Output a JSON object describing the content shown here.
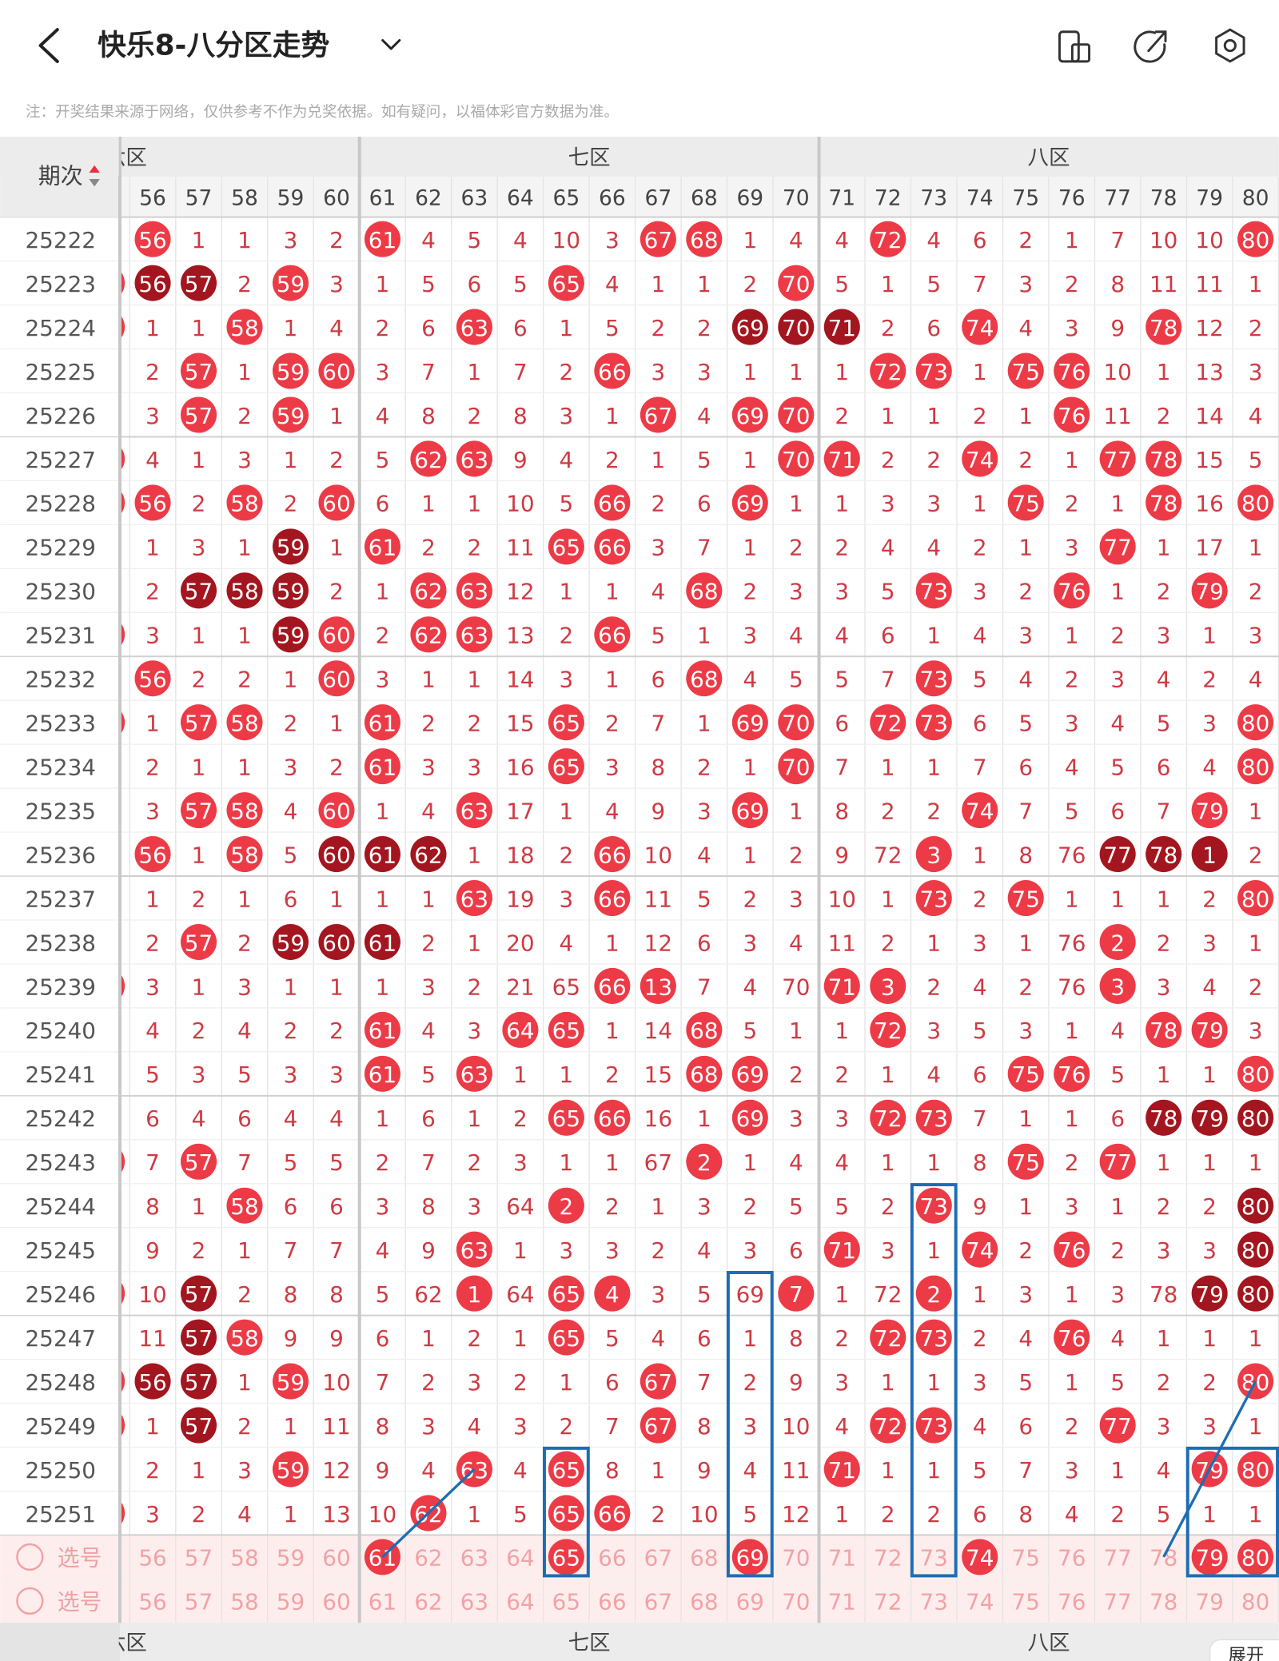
{
  "header": {
    "title": "快乐8-八分区走势",
    "notice": "注：开奖结果来源于网络，仅供参考不作为兑奖依据。如有疑问，以福体彩官方数据为准。"
  },
  "table": {
    "period_header": "期次",
    "zones": [
      "六区",
      "七区",
      "八区"
    ],
    "columns": [
      56,
      57,
      58,
      59,
      60,
      61,
      62,
      63,
      64,
      65,
      66,
      67,
      68,
      69,
      70,
      71,
      72,
      73,
      74,
      75,
      76,
      77,
      78,
      79,
      80
    ],
    "ball_colors": {
      "r": "#ec3b47",
      "d": "#a3161f"
    },
    "rows": [
      {
        "period": "25222",
        "cells": [
          56,
          1,
          1,
          3,
          2,
          61,
          4,
          5,
          4,
          10,
          3,
          67,
          68,
          1,
          4,
          4,
          72,
          4,
          6,
          2,
          1,
          7,
          10,
          10,
          80
        ],
        "balls": ".r....r.....rr...r.......r"
      },
      {
        "period": "25223",
        "cells": [
          56,
          57,
          2,
          59,
          3,
          1,
          5,
          6,
          5,
          65,
          4,
          1,
          1,
          2,
          70,
          5,
          1,
          5,
          7,
          3,
          2,
          8,
          11,
          11,
          1
        ],
        "balls": "rdd.r.....r....r.........."
      },
      {
        "period": "25224",
        "cells": [
          1,
          1,
          58,
          1,
          4,
          2,
          6,
          63,
          6,
          1,
          5,
          2,
          2,
          69,
          70,
          71,
          2,
          6,
          74,
          4,
          3,
          9,
          78,
          12,
          2
        ],
        "balls": "r..r....r.....ddd..r...r.."
      },
      {
        "period": "25225",
        "cells": [
          2,
          57,
          1,
          59,
          60,
          3,
          7,
          1,
          7,
          2,
          66,
          3,
          3,
          1,
          1,
          1,
          72,
          73,
          1,
          75,
          76,
          10,
          1,
          13,
          3
        ],
        "balls": "..r.rr.....r.....rr.rr...."
      },
      {
        "period": "25226",
        "cells": [
          3,
          57,
          2,
          59,
          1,
          4,
          8,
          2,
          8,
          3,
          1,
          67,
          4,
          69,
          70,
          2,
          1,
          1,
          2,
          1,
          76,
          11,
          2,
          14,
          4
        ],
        "balls": "..r.r.......r.rr.....r...."
      },
      {
        "period": "25227",
        "cells": [
          4,
          1,
          3,
          1,
          2,
          5,
          62,
          63,
          9,
          4,
          2,
          1,
          5,
          1,
          70,
          71,
          2,
          2,
          74,
          2,
          1,
          77,
          78,
          15,
          5
        ],
        "balls": "r......rr......rr..r..rr.."
      },
      {
        "period": "25228",
        "cells": [
          56,
          2,
          58,
          2,
          60,
          6,
          1,
          1,
          10,
          5,
          66,
          2,
          6,
          69,
          1,
          1,
          3,
          3,
          1,
          75,
          2,
          1,
          78,
          16,
          80
        ],
        "balls": "rr.r.r.....r..r.....r..r.r"
      },
      {
        "period": "25229",
        "cells": [
          1,
          3,
          1,
          59,
          1,
          61,
          2,
          2,
          11,
          65,
          66,
          3,
          7,
          1,
          2,
          2,
          4,
          4,
          2,
          1,
          3,
          77,
          1,
          17,
          1
        ],
        "balls": "....d.r...rr..........r..."
      },
      {
        "period": "25230",
        "cells": [
          2,
          57,
          58,
          59,
          2,
          1,
          62,
          63,
          12,
          1,
          1,
          4,
          68,
          2,
          3,
          3,
          5,
          73,
          3,
          2,
          76,
          1,
          2,
          79,
          2
        ],
        "balls": "..ddd..rr....r....r..r..r."
      },
      {
        "period": "25231",
        "cells": [
          3,
          1,
          1,
          59,
          60,
          2,
          62,
          63,
          13,
          2,
          66,
          5,
          1,
          3,
          4,
          4,
          6,
          1,
          4,
          3,
          1,
          2,
          3,
          1,
          3
        ],
        "balls": "r...dr.rr..r.............."
      },
      {
        "period": "25232",
        "cells": [
          56,
          2,
          2,
          1,
          60,
          3,
          1,
          1,
          14,
          3,
          1,
          6,
          68,
          4,
          5,
          5,
          7,
          73,
          5,
          4,
          2,
          3,
          4,
          2,
          4
        ],
        "balls": ".r...r.......r....r......."
      },
      {
        "period": "25233",
        "cells": [
          1,
          57,
          58,
          2,
          1,
          61,
          2,
          2,
          15,
          65,
          2,
          7,
          1,
          69,
          70,
          6,
          72,
          73,
          6,
          5,
          3,
          4,
          5,
          3,
          80
        ],
        "balls": "r.rr..r...r...rr.rr......r"
      },
      {
        "period": "25234",
        "cells": [
          2,
          1,
          1,
          3,
          2,
          61,
          3,
          3,
          16,
          65,
          3,
          8,
          2,
          1,
          70,
          7,
          1,
          1,
          7,
          6,
          4,
          5,
          6,
          4,
          80
        ],
        "balls": "......r...r....r.........r"
      },
      {
        "period": "25235",
        "cells": [
          3,
          57,
          58,
          4,
          60,
          1,
          4,
          63,
          17,
          1,
          4,
          9,
          3,
          69,
          1,
          8,
          2,
          2,
          74,
          7,
          5,
          6,
          7,
          79,
          1
        ],
        "balls": "..rr.r..r.....r....r....r."
      },
      {
        "period": "25236",
        "cells": [
          56,
          1,
          58,
          5,
          60,
          61,
          62,
          1,
          18,
          2,
          66,
          10,
          4,
          1,
          2,
          9,
          72,
          3,
          1,
          8,
          76,
          77,
          78,
          1,
          2
        ],
        "balls": ".r.r.ddd...r......r...ddd.."
      },
      {
        "period": "25237",
        "cells": [
          1,
          2,
          1,
          6,
          1,
          1,
          1,
          63,
          19,
          3,
          66,
          11,
          5,
          2,
          3,
          10,
          1,
          73,
          2,
          75,
          1,
          1,
          1,
          2,
          80
        ],
        "balls": "........r..r......r.r....r"
      },
      {
        "period": "25238",
        "cells": [
          2,
          57,
          2,
          59,
          60,
          61,
          2,
          1,
          20,
          4,
          1,
          12,
          6,
          3,
          4,
          11,
          2,
          1,
          3,
          1,
          76,
          2,
          2,
          3,
          1
        ],
        "balls": "..r.ddd...............r...."
      },
      {
        "period": "25239",
        "cells": [
          3,
          1,
          3,
          1,
          1,
          1,
          3,
          2,
          21,
          65,
          66,
          13,
          7,
          4,
          70,
          71,
          3,
          2,
          4,
          2,
          76,
          3,
          3,
          4,
          2
        ],
        "balls": "r..........rr...rr....r...."
      },
      {
        "period": "25240",
        "cells": [
          4,
          2,
          4,
          2,
          2,
          61,
          4,
          3,
          64,
          65,
          1,
          14,
          68,
          5,
          1,
          1,
          72,
          3,
          5,
          3,
          1,
          4,
          78,
          79,
          3
        ],
        "balls": "......r..rr..r...r.....rr."
      },
      {
        "period": "25241",
        "cells": [
          5,
          3,
          5,
          3,
          3,
          61,
          5,
          63,
          1,
          1,
          2,
          15,
          68,
          69,
          2,
          2,
          1,
          4,
          6,
          75,
          76,
          5,
          1,
          1,
          80
        ],
        "balls": "......r.r....rr.....rr...r"
      },
      {
        "period": "25242",
        "cells": [
          6,
          4,
          6,
          4,
          4,
          1,
          6,
          1,
          2,
          65,
          66,
          16,
          1,
          69,
          3,
          3,
          72,
          73,
          7,
          1,
          1,
          6,
          78,
          79,
          80
        ],
        "balls": "..........rr..r..rr....ddd"
      },
      {
        "period": "25243",
        "cells": [
          7,
          57,
          7,
          5,
          5,
          2,
          7,
          2,
          3,
          1,
          1,
          67,
          2,
          1,
          4,
          4,
          1,
          1,
          8,
          75,
          2,
          77,
          1,
          1,
          1
        ],
        "balls": "r.r..........r......r.r..."
      },
      {
        "period": "25244",
        "cells": [
          8,
          1,
          58,
          6,
          6,
          3,
          8,
          3,
          64,
          2,
          2,
          1,
          3,
          2,
          5,
          5,
          2,
          73,
          9,
          1,
          3,
          1,
          2,
          2,
          80
        ],
        "balls": "...r......r.......r......d"
      },
      {
        "period": "25245",
        "cells": [
          9,
          2,
          1,
          7,
          7,
          4,
          9,
          63,
          1,
          3,
          3,
          2,
          4,
          3,
          6,
          71,
          3,
          1,
          74,
          2,
          76,
          2,
          3,
          3,
          80
        ],
        "balls": "........r.......r..r.r...d"
      },
      {
        "period": "25246",
        "cells": [
          10,
          57,
          2,
          8,
          8,
          5,
          62,
          1,
          64,
          65,
          4,
          3,
          5,
          69,
          7,
          1,
          72,
          2,
          1,
          3,
          1,
          3,
          78,
          79,
          80
        ],
        "balls": "r.d.....r.rr...r..r.....ddd"
      },
      {
        "period": "25247",
        "cells": [
          11,
          57,
          58,
          9,
          9,
          6,
          1,
          2,
          1,
          65,
          5,
          4,
          6,
          1,
          8,
          2,
          72,
          73,
          2,
          4,
          76,
          4,
          1,
          1,
          1
        ],
        "balls": "..dr......r......rr..r...."
      },
      {
        "period": "25248",
        "cells": [
          56,
          57,
          1,
          59,
          10,
          7,
          2,
          3,
          2,
          1,
          6,
          67,
          7,
          2,
          9,
          3,
          1,
          1,
          3,
          5,
          1,
          5,
          2,
          2,
          80
        ],
        "balls": "rdd.r.......r............r"
      },
      {
        "period": "25249",
        "cells": [
          1,
          57,
          2,
          1,
          11,
          8,
          3,
          4,
          3,
          2,
          7,
          67,
          8,
          3,
          10,
          4,
          72,
          73,
          4,
          6,
          2,
          77,
          3,
          3,
          1
        ],
        "balls": "r.d.........r....rr...r..."
      },
      {
        "period": "25250",
        "cells": [
          2,
          1,
          3,
          59,
          12,
          9,
          4,
          63,
          4,
          65,
          8,
          1,
          9,
          4,
          11,
          71,
          1,
          1,
          5,
          7,
          3,
          1,
          4,
          79,
          80
        ],
        "balls": "....r...r.r.....r.......rr"
      },
      {
        "period": "25251",
        "cells": [
          3,
          2,
          4,
          1,
          13,
          10,
          62,
          1,
          5,
          65,
          66,
          2,
          10,
          5,
          12,
          1,
          2,
          2,
          6,
          8,
          4,
          2,
          5,
          1,
          1
        ],
        "balls": "r......r..rr.............."
      }
    ],
    "pick_rows": [
      {
        "label": "选号",
        "balls": "......r...r...r....r....rrr"
      },
      {
        "label": "选号",
        "balls": ".........................."
      }
    ]
  },
  "footer": {
    "zones": [
      "六区",
      "七区",
      "八区"
    ],
    "button": "展开"
  }
}
